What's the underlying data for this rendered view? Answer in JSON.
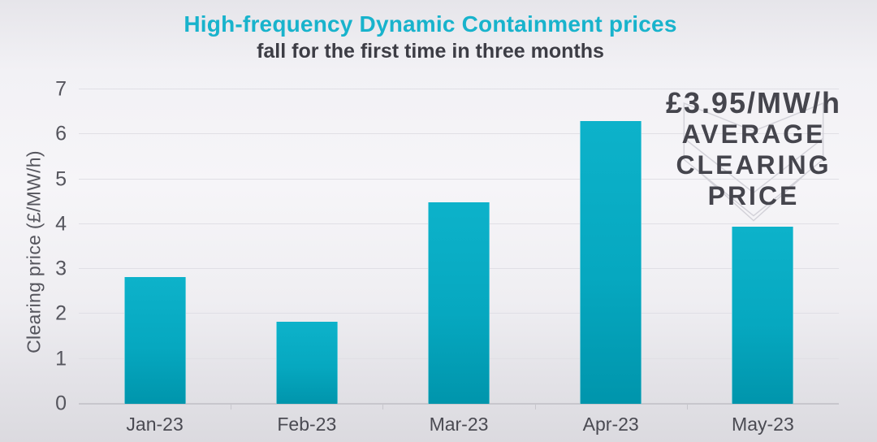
{
  "title": {
    "line1": "High-frequency Dynamic Containment prices",
    "line2": "fall for the first time in three months"
  },
  "annotation": {
    "line1": "£3.95/MW/h",
    "line2": "AVERAGE",
    "line3": "CLEARING",
    "line4": "PRICE"
  },
  "chart_data": {
    "type": "bar",
    "categories": [
      "Jan-23",
      "Feb-23",
      "Mar-23",
      "Apr-23",
      "May-23"
    ],
    "values": [
      2.83,
      1.83,
      4.48,
      6.3,
      3.95
    ],
    "title": "High-frequency Dynamic Containment prices fall for the first time in three months",
    "xlabel": "",
    "ylabel": "Clearing price (£/MW/h)",
    "ylim": [
      0,
      7
    ],
    "yticks": [
      0,
      1,
      2,
      3,
      4,
      5,
      6,
      7
    ],
    "grid": true,
    "legend": false,
    "annotation": "£3.95/MW/h AVERAGE CLEARING PRICE",
    "bar_color": "#0aadc5"
  },
  "colors": {
    "title_accent": "#18b3cc",
    "title_dark": "#3d3d45",
    "bar": "#0aadc5",
    "axis_text": "#55555d",
    "gridline": "#e0dfe5",
    "annotation_text": "#45454d",
    "chevron_stroke": "#d3d2d9"
  }
}
